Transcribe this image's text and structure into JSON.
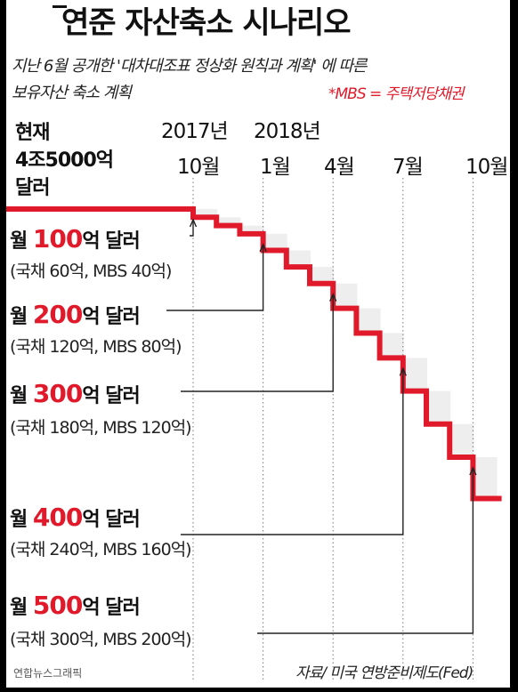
{
  "title": "연준 자산축소 시나리오",
  "subtitle_line1": "지난 6월 공개한 '대차대조표 정상화 원칙과 계획' 에 따른",
  "subtitle_line2": "보유자산 축소 계획",
  "mbs_note": "*MBS = 주택저당채권",
  "source": "자료/ 미국 연방준비제도(Fed)",
  "credit": "연합뉴스그래픽",
  "colors": {
    "step_line": "#e01a2b",
    "highlight": "#e01a2b",
    "shading": "#eeeeee"
  },
  "chart_data": {
    "type": "line",
    "title": "연준 자산축소 시나리오",
    "current": {
      "label_lines": [
        "현재",
        "4조5000억",
        "달러"
      ]
    },
    "year_labels": [
      {
        "label": "2017년",
        "month_index": 0
      },
      {
        "label": "2018년",
        "month_index": 3
      }
    ],
    "month_ticks": [
      {
        "label": "10월",
        "month_index": 0
      },
      {
        "label": "1월",
        "month_index": 3
      },
      {
        "label": "4월",
        "month_index": 6
      },
      {
        "label": "7월",
        "month_index": 9
      },
      {
        "label": "10월",
        "month_index": 12
      }
    ],
    "monthly_reduction": [
      10,
      10,
      10,
      20,
      20,
      20,
      30,
      30,
      30,
      40,
      40,
      40,
      50
    ],
    "steps": [
      {
        "monthly": "월",
        "amount": "100",
        "unit": "억 달러",
        "detail": "(국채 60억, MBS 40억)",
        "treasury": 60,
        "mbs": 40,
        "start_month_index": 0
      },
      {
        "monthly": "월",
        "amount": "200",
        "unit": "억 달러",
        "detail": "(국채 120억, MBS 80억)",
        "treasury": 120,
        "mbs": 80,
        "start_month_index": 3
      },
      {
        "monthly": "월",
        "amount": "300",
        "unit": "억 달러",
        "detail": "(국채 180억, MBS 120억)",
        "treasury": 180,
        "mbs": 120,
        "start_month_index": 6
      },
      {
        "monthly": "월",
        "amount": "400",
        "unit": "억 달러",
        "detail": "(국채 240억, MBS 160억)",
        "treasury": 240,
        "mbs": 160,
        "start_month_index": 9
      },
      {
        "monthly": "월",
        "amount": "500",
        "unit": "억 달러",
        "detail": "(국채 300억, MBS 200억)",
        "treasury": 300,
        "mbs": 200,
        "start_month_index": 12
      }
    ]
  }
}
